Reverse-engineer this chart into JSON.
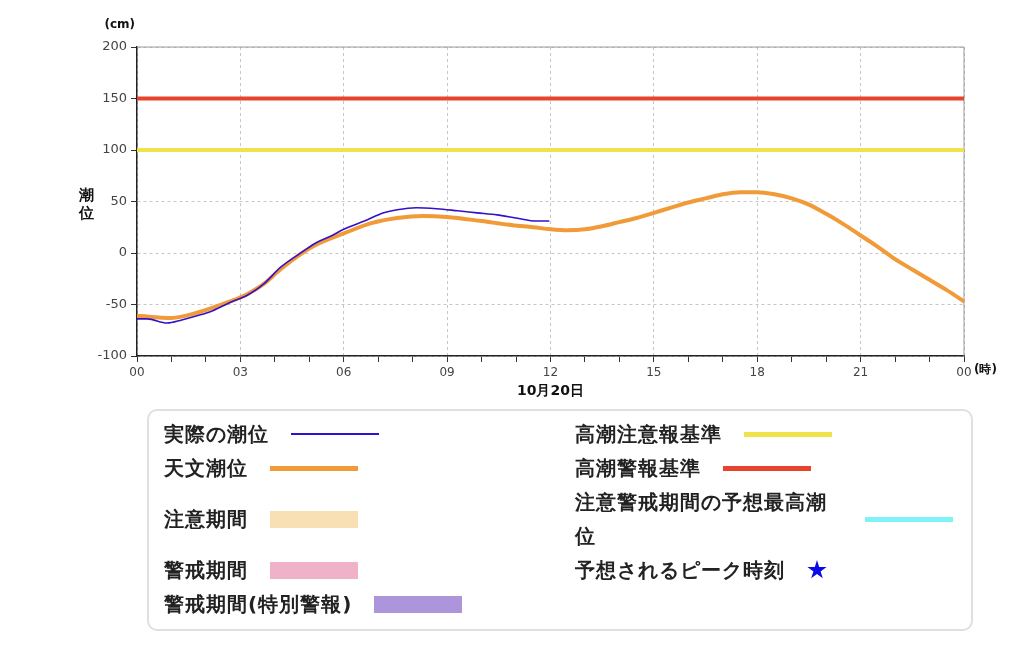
{
  "chart_data": {
    "type": "line",
    "xlabel": "10月20日",
    "ylabel": "潮位",
    "annotations": [
      "(cm)",
      "(時)"
    ],
    "xlim": [
      0,
      24
    ],
    "xticks": [
      {
        "value": 0,
        "label": "00"
      },
      {
        "value": 1,
        "label": null
      },
      {
        "value": 2,
        "label": null
      },
      {
        "value": 3,
        "label": "03"
      },
      {
        "value": 4,
        "label": null
      },
      {
        "value": 5,
        "label": null
      },
      {
        "value": 6,
        "label": "06"
      },
      {
        "value": 7,
        "label": null
      },
      {
        "value": 8,
        "label": null
      },
      {
        "value": 9,
        "label": "09"
      },
      {
        "value": 10,
        "label": null
      },
      {
        "value": 11,
        "label": null
      },
      12,
      {
        "value": 13,
        "label": null
      },
      {
        "value": 14,
        "label": null
      },
      15,
      {
        "value": 16,
        "label": null
      },
      {
        "value": 17,
        "label": null
      },
      18,
      {
        "value": 19,
        "label": null
      },
      {
        "value": 20,
        "label": null
      },
      21,
      {
        "value": 22,
        "label": null
      },
      {
        "value": 23,
        "label": null
      },
      {
        "value": 24,
        "label": "00"
      }
    ],
    "ylim": [
      -100,
      200
    ],
    "yticks": [
      -100,
      -50,
      0,
      50,
      100,
      150,
      200
    ],
    "grid": true,
    "legend": "bottom",
    "ref_lines": [
      {
        "axis": "y",
        "value": 100,
        "label": "高潮注意報基準",
        "color": "#f0e24a"
      },
      {
        "axis": "y",
        "value": 150,
        "label": "高潮警報基準",
        "color": "#e8432c"
      }
    ],
    "series": [
      {
        "name": "実際の潮位",
        "color": "#3311cc",
        "x": [
          0,
          0.3,
          0.87,
          1.3,
          1.74,
          2.2,
          2.7,
          3.2,
          3.68,
          4.16,
          4.84,
          5.2,
          5.6,
          6,
          6.6,
          7.16,
          7.55,
          8.1,
          8.7,
          9.3,
          9.87,
          10.45,
          11,
          11.6,
          11.95
        ],
        "values": [
          -64,
          -64,
          -68,
          -65,
          -61,
          -56,
          -48,
          -41,
          -30,
          -14,
          2,
          10,
          16,
          23,
          31,
          39,
          42,
          44,
          43,
          41,
          39,
          37,
          34,
          31,
          31
        ]
      },
      {
        "name": "天文潮位",
        "color": "#f09a38",
        "x": [
          0,
          1,
          1.74,
          2.7,
          3.2,
          3.68,
          4.16,
          4.84,
          5.2,
          6,
          6.8,
          7.55,
          8.3,
          9,
          10,
          10.9,
          11.5,
          12,
          12.5,
          13,
          13.5,
          14,
          14.5,
          15,
          15.5,
          16,
          16.5,
          17,
          17.5,
          18,
          18.5,
          19,
          19.5,
          20,
          20.5,
          21,
          21.5,
          22,
          22.5,
          23,
          23.5,
          24
        ],
        "values": [
          -61,
          -63,
          -58,
          -47,
          -40,
          -30,
          -16,
          1,
          8,
          19,
          29,
          34,
          36,
          35,
          31,
          27,
          25,
          23,
          22,
          23,
          26,
          30,
          34,
          39,
          44,
          49,
          53,
          57,
          59,
          59,
          57,
          53,
          47,
          38,
          28,
          17,
          6,
          -6,
          -16,
          -26,
          -36,
          -47
        ]
      },
      {
        "name": "注意期間",
        "type": "area",
        "color": "#f8dfb4"
      },
      {
        "name": "警戒期間",
        "type": "area",
        "color": "#f0b2c8"
      },
      {
        "name": "警戒期間(特別警報)",
        "type": "area",
        "color": "#ad95dc"
      },
      {
        "name": "注意警戒期間の予想最高潮位",
        "color": "#7ff2f8"
      },
      {
        "name": "予想されるピーク時刻",
        "type": "scatter",
        "marker": "star",
        "color": "#0a0ae8"
      }
    ]
  }
}
